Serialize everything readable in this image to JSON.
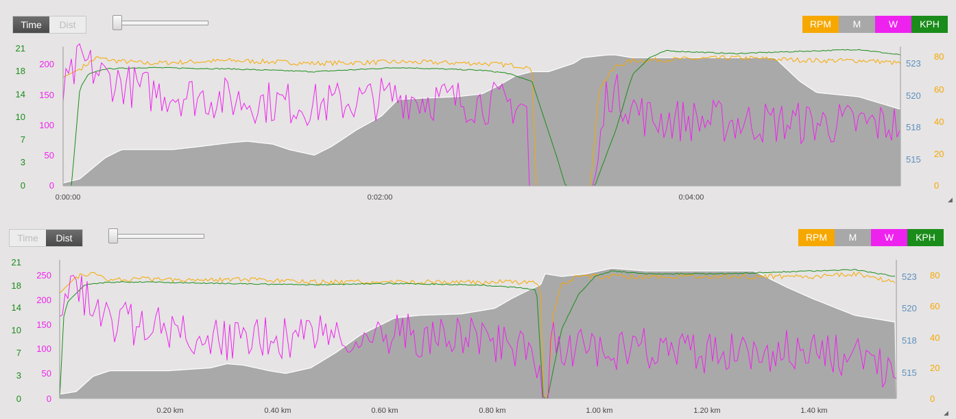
{
  "panels": [
    {
      "mode_toggle": {
        "time_label": "Time",
        "dist_label": "Dist",
        "active": "time"
      },
      "legend": [
        {
          "label": "RPM",
          "color": "#f6a800"
        },
        {
          "label": "M",
          "color": "#a8a8a8"
        },
        {
          "label": "W",
          "color": "#ee22ee"
        },
        {
          "label": "KPH",
          "color": "#1a8c1a"
        }
      ],
      "chart_data": {
        "type": "line",
        "x_ticks": [
          "0:00:00",
          "0:02:00",
          "0:04:00"
        ],
        "axes": {
          "kph": {
            "color": "#1a8c1a",
            "ticks": [
              "21",
              "18",
              "14",
              "10",
              "7",
              "3",
              "0"
            ]
          },
          "w": {
            "color": "#ee22ee",
            "ticks": [
              "200",
              "150",
              "100",
              "50",
              "0"
            ]
          },
          "m": {
            "color": "#5c8fbf",
            "ticks": [
              "523",
              "520",
              "518",
              "515"
            ]
          },
          "rpm": {
            "color": "#f6a800",
            "ticks": [
              "80",
              "60",
              "40",
              "20",
              "0"
            ]
          }
        }
      }
    },
    {
      "mode_toggle": {
        "time_label": "Time",
        "dist_label": "Dist",
        "active": "dist"
      },
      "legend": [
        {
          "label": "RPM",
          "color": "#f6a800"
        },
        {
          "label": "M",
          "color": "#a8a8a8"
        },
        {
          "label": "W",
          "color": "#ee22ee"
        },
        {
          "label": "KPH",
          "color": "#1a8c1a"
        }
      ],
      "chart_data": {
        "type": "line",
        "x_ticks": [
          "0.20 km",
          "0.40 km",
          "0.60 km",
          "0.80 km",
          "1.00 km",
          "1.20 km",
          "1.40 km"
        ],
        "axes": {
          "kph": {
            "color": "#1a8c1a",
            "ticks": [
              "21",
              "18",
              "14",
              "10",
              "7",
              "3",
              "0"
            ]
          },
          "w": {
            "color": "#ee22ee",
            "ticks": [
              "250",
              "200",
              "150",
              "100",
              "50",
              "0"
            ]
          },
          "m": {
            "color": "#5c8fbf",
            "ticks": [
              "523",
              "520",
              "518",
              "515"
            ]
          },
          "rpm": {
            "color": "#f6a800",
            "ticks": [
              "80",
              "60",
              "40",
              "20",
              "0"
            ]
          }
        }
      }
    }
  ]
}
